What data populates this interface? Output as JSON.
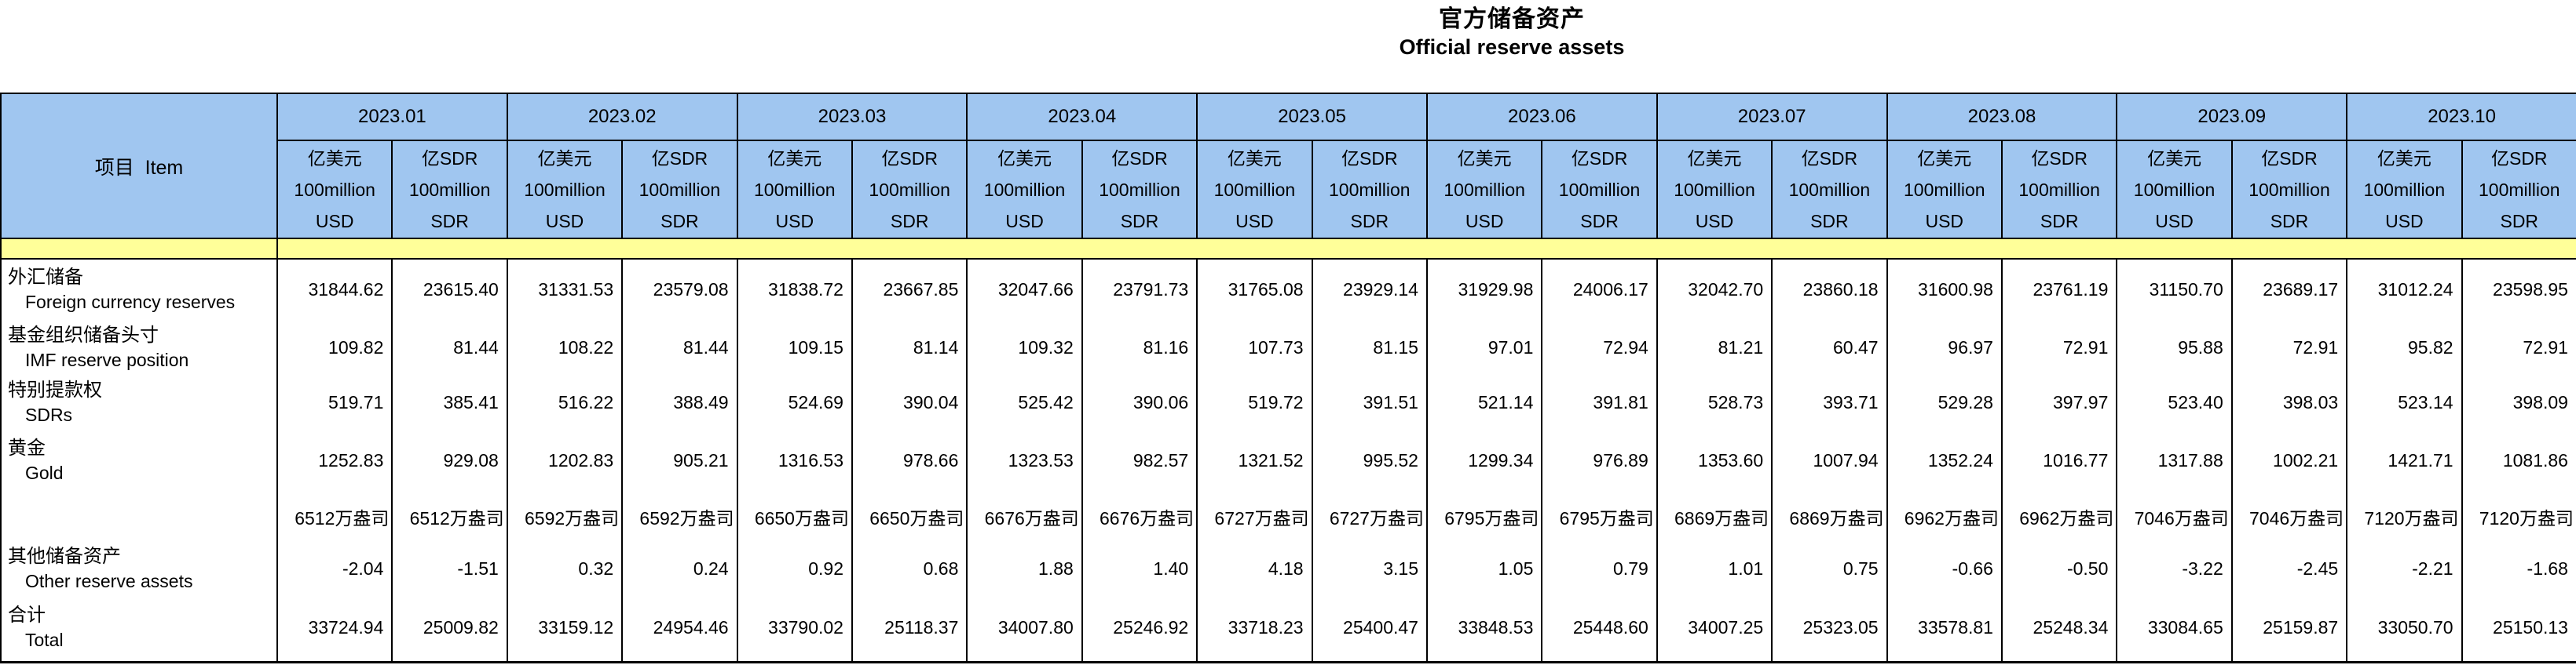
{
  "title": {
    "zh": "官方储备资产",
    "en": "Official reserve assets"
  },
  "colors": {
    "header_blue": "#A0C6F0",
    "band_yellow": "#FFFF99"
  },
  "table": {
    "item_header": "项目  Item",
    "months": [
      "2023.01",
      "2023.02",
      "2023.03",
      "2023.04",
      "2023.05",
      "2023.06",
      "2023.07",
      "2023.08",
      "2023.09",
      "2023.10"
    ],
    "unit_usd": [
      "亿美元",
      "100million",
      "USD"
    ],
    "unit_sdr": [
      "亿SDR",
      "100million",
      "SDR"
    ],
    "rows": [
      {
        "key": "fx",
        "zh": "外汇储备",
        "en": "Foreign currency reserves",
        "values": [
          [
            "31844.62",
            "23615.40"
          ],
          [
            "31331.53",
            "23579.08"
          ],
          [
            "31838.72",
            "23667.85"
          ],
          [
            "32047.66",
            "23791.73"
          ],
          [
            "31765.08",
            "23929.14"
          ],
          [
            "31929.98",
            "24006.17"
          ],
          [
            "32042.70",
            "23860.18"
          ],
          [
            "31600.98",
            "23761.19"
          ],
          [
            "31150.70",
            "23689.17"
          ],
          [
            "31012.24",
            "23598.95"
          ]
        ]
      },
      {
        "key": "imf",
        "zh": "基金组织储备头寸",
        "en": "IMF reserve position",
        "values": [
          [
            "109.82",
            "81.44"
          ],
          [
            "108.22",
            "81.44"
          ],
          [
            "109.15",
            "81.14"
          ],
          [
            "109.32",
            "81.16"
          ],
          [
            "107.73",
            "81.15"
          ],
          [
            "97.01",
            "72.94"
          ],
          [
            "81.21",
            "60.47"
          ],
          [
            "96.97",
            "72.91"
          ],
          [
            "95.88",
            "72.91"
          ],
          [
            "95.82",
            "72.91"
          ]
        ]
      },
      {
        "key": "sdrs",
        "zh": "特别提款权",
        "en": "SDRs",
        "values": [
          [
            "519.71",
            "385.41"
          ],
          [
            "516.22",
            "388.49"
          ],
          [
            "524.69",
            "390.04"
          ],
          [
            "525.42",
            "390.06"
          ],
          [
            "519.72",
            "391.51"
          ],
          [
            "521.14",
            "391.81"
          ],
          [
            "528.73",
            "393.71"
          ],
          [
            "529.28",
            "397.97"
          ],
          [
            "523.40",
            "398.03"
          ],
          [
            "523.14",
            "398.09"
          ]
        ]
      },
      {
        "key": "gold",
        "zh": "黄金",
        "en": "Gold",
        "values": [
          [
            "1252.83",
            "929.08"
          ],
          [
            "1202.83",
            "905.21"
          ],
          [
            "1316.53",
            "978.66"
          ],
          [
            "1323.53",
            "982.57"
          ],
          [
            "1321.52",
            "995.52"
          ],
          [
            "1299.34",
            "976.89"
          ],
          [
            "1353.60",
            "1007.94"
          ],
          [
            "1352.24",
            "1016.77"
          ],
          [
            "1317.88",
            "1002.21"
          ],
          [
            "1421.71",
            "1081.86"
          ]
        ]
      },
      {
        "key": "gold_ounces",
        "zh": "",
        "en": "",
        "values": [
          [
            "6512万盎司",
            "6512万盎司"
          ],
          [
            "6592万盎司",
            "6592万盎司"
          ],
          [
            "6650万盎司",
            "6650万盎司"
          ],
          [
            "6676万盎司",
            "6676万盎司"
          ],
          [
            "6727万盎司",
            "6727万盎司"
          ],
          [
            "6795万盎司",
            "6795万盎司"
          ],
          [
            "6869万盎司",
            "6869万盎司"
          ],
          [
            "6962万盎司",
            "6962万盎司"
          ],
          [
            "7046万盎司",
            "7046万盎司"
          ],
          [
            "7120万盎司",
            "7120万盎司"
          ]
        ]
      },
      {
        "key": "other",
        "zh": "其他储备资产",
        "en": "Other reserve assets",
        "values": [
          [
            "-2.04",
            "-1.51"
          ],
          [
            "0.32",
            "0.24"
          ],
          [
            "0.92",
            "0.68"
          ],
          [
            "1.88",
            "1.40"
          ],
          [
            "4.18",
            "3.15"
          ],
          [
            "1.05",
            "0.79"
          ],
          [
            "1.01",
            "0.75"
          ],
          [
            "-0.66",
            "-0.50"
          ],
          [
            "-3.22",
            "-2.45"
          ],
          [
            "-2.21",
            "-1.68"
          ]
        ]
      },
      {
        "key": "total",
        "zh": "合计",
        "en": "Total",
        "values": [
          [
            "33724.94",
            "25009.82"
          ],
          [
            "33159.12",
            "24954.46"
          ],
          [
            "33790.02",
            "25118.37"
          ],
          [
            "34007.80",
            "25246.92"
          ],
          [
            "33718.23",
            "25400.47"
          ],
          [
            "33848.53",
            "25448.60"
          ],
          [
            "34007.25",
            "25323.05"
          ],
          [
            "33578.81",
            "25248.34"
          ],
          [
            "33084.65",
            "25159.87"
          ],
          [
            "33050.70",
            "25150.13"
          ]
        ]
      }
    ]
  }
}
